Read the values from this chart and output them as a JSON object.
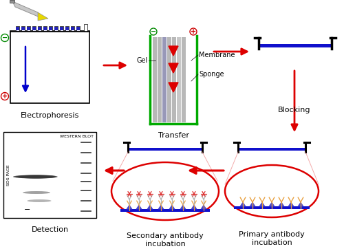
{
  "labels": {
    "electrophoresis": "Electrophoresis",
    "transfer": "Transfer",
    "blocking": "Blocking",
    "detection": "Detection",
    "secondary": "Secondary antibody\nincubation",
    "primary": "Primary antibody\nincubation",
    "gel": "Gel",
    "membrane": "Membrane",
    "sponge": "Sponge",
    "western_blot": "WESTERN BLOT",
    "sds_page": "SDS PAGE"
  },
  "colors": {
    "red": "#dd0000",
    "blue": "#1010cc",
    "green": "#00aa00",
    "black": "#000000",
    "white": "#ffffff",
    "orange": "#e8a040",
    "lgray": "#b8b8b8",
    "dgray": "#666666",
    "purple_strip": "#9090c0",
    "band_dark": "#444444",
    "star_red": "#dd3030",
    "tri_blue": "#4040cc"
  }
}
